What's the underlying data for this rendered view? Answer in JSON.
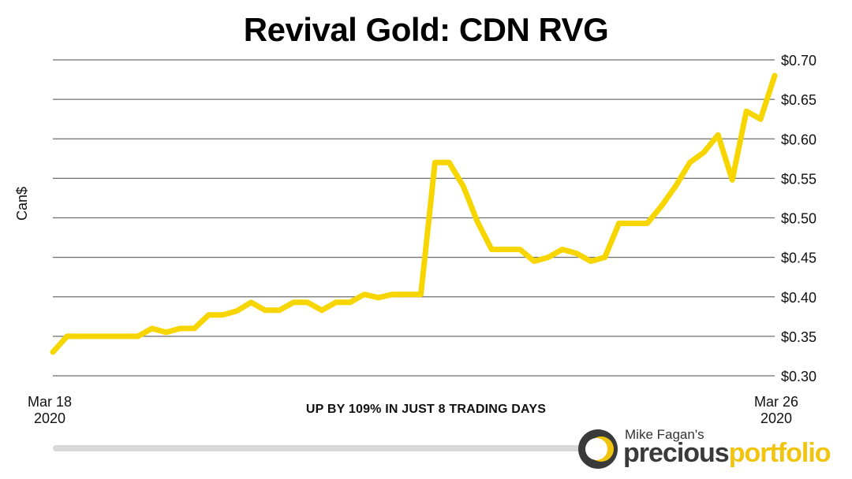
{
  "chart_data": {
    "type": "line",
    "title": "Revival Gold: CDN RVG",
    "ylabel": "Can$",
    "xlabel": "",
    "ylim": [
      0.3,
      0.7
    ],
    "yticks": [
      "$0.30",
      "$0.35",
      "$0.40",
      "$0.45",
      "$0.50",
      "$0.55",
      "$0.60",
      "$0.65",
      "$0.70"
    ],
    "ytick_values": [
      0.3,
      0.35,
      0.4,
      0.45,
      0.5,
      0.55,
      0.6,
      0.65,
      0.7
    ],
    "x_start_label_line1": "Mar 18",
    "x_start_label_line2": "2020",
    "x_end_label_line1": "Mar 26",
    "x_end_label_line2": "2020",
    "annotation": "UP BY 109% IN JUST 8 TRADING DAYS",
    "grid": true,
    "series": [
      {
        "color": "#f7d600",
        "values": [
          0.33,
          0.35,
          0.35,
          0.35,
          0.35,
          0.35,
          0.35,
          0.36,
          0.355,
          0.36,
          0.36,
          0.377,
          0.377,
          0.382,
          0.393,
          0.383,
          0.383,
          0.393,
          0.393,
          0.383,
          0.393,
          0.393,
          0.403,
          0.399,
          0.403,
          0.403,
          0.403,
          0.57,
          0.57,
          0.54,
          0.495,
          0.46,
          0.46,
          0.46,
          0.445,
          0.45,
          0.46,
          0.455,
          0.445,
          0.45,
          0.493,
          0.493,
          0.493,
          0.515,
          0.54,
          0.57,
          0.583,
          0.605,
          0.548,
          0.635,
          0.625,
          0.68
        ]
      }
    ]
  },
  "logo": {
    "small_text": "Mike Fagan's",
    "big_text_part1": "precious",
    "big_text_part2": "portfolio"
  }
}
